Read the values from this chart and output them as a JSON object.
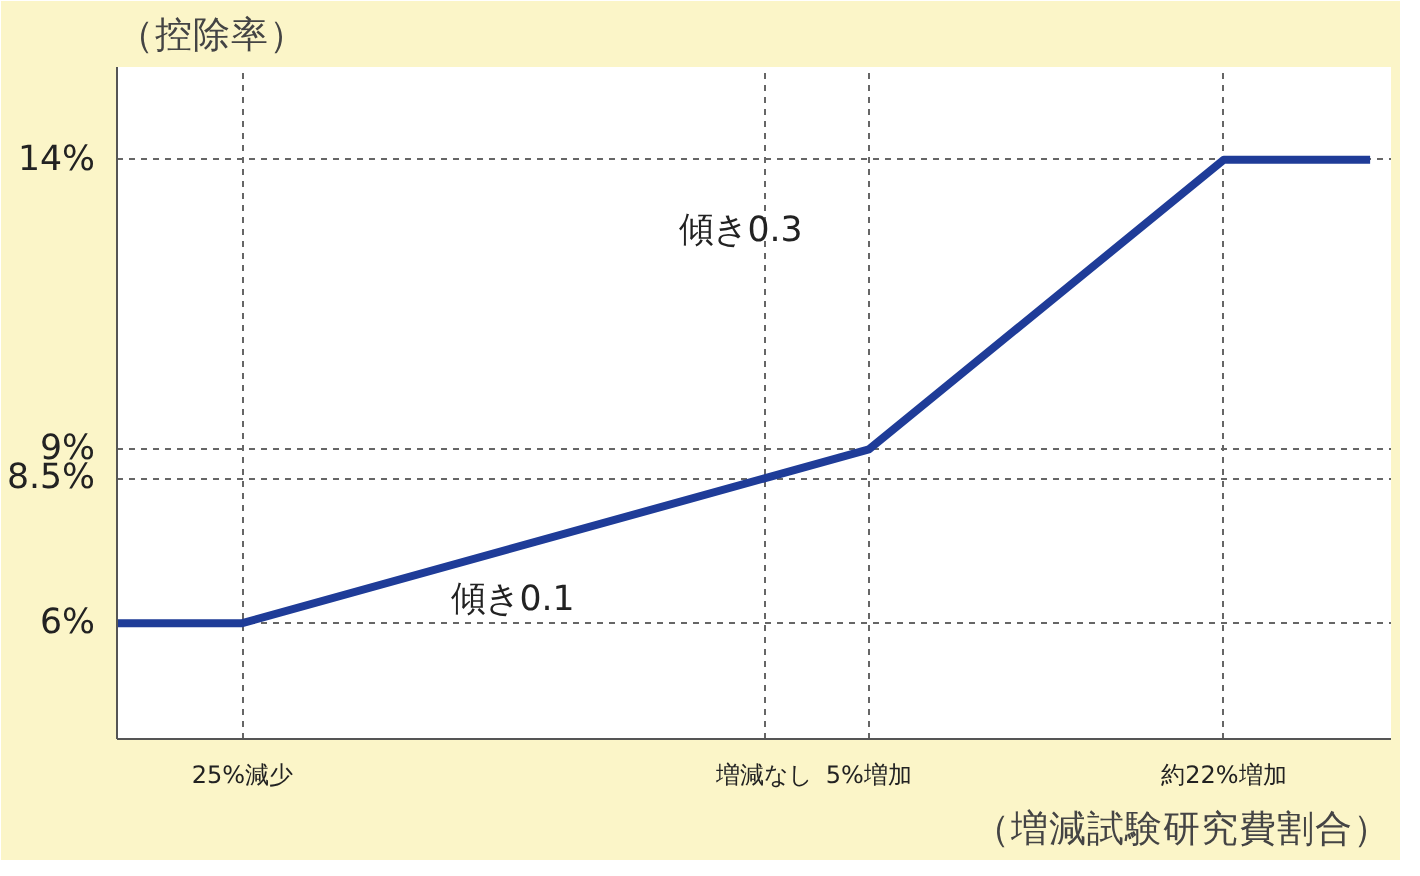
{
  "chart_data": {
    "type": "line",
    "ylabel": "（控除率）",
    "xlabel": "（増減試験研究費割合）",
    "x": [
      -31,
      -25,
      0,
      5,
      22,
      29
    ],
    "series": [
      {
        "color": "#1f3c98",
        "values": [
          6,
          6,
          8.5,
          9,
          14,
          14
        ]
      }
    ],
    "xlim": [
      -31,
      30
    ],
    "ylim": [
      4,
      15.6
    ],
    "xticks": [
      {
        "value": -25,
        "label": "25%減少"
      },
      {
        "value": 0,
        "label": "増減なし"
      },
      {
        "value": 5,
        "label": "5%増加"
      },
      {
        "value": 22,
        "label": "約22%増加"
      }
    ],
    "yticks": [
      {
        "value": 6,
        "label": "6%"
      },
      {
        "value": 8.5,
        "label": "8.5%"
      },
      {
        "value": 9,
        "label": "9%"
      },
      {
        "value": 14,
        "label": "14%"
      }
    ],
    "grid": true,
    "line_style": "solid",
    "marker": "none",
    "annotations": [
      "傾き0.1",
      "傾き0.3"
    ]
  }
}
